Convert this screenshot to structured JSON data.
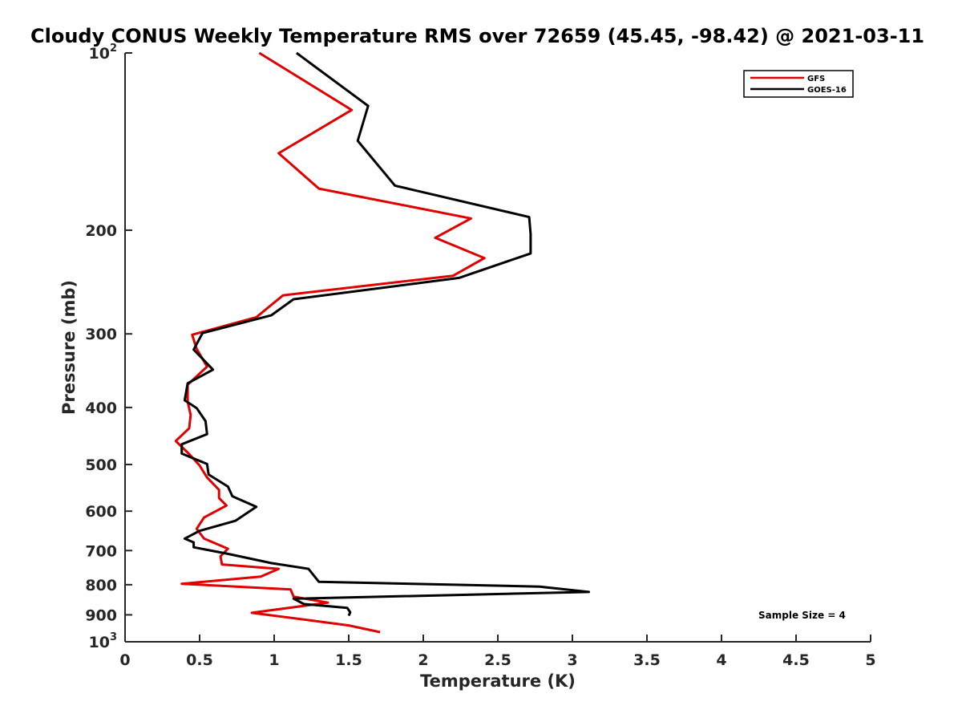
{
  "chart_data": {
    "type": "line",
    "title": "Cloudy CONUS Weekly Temperature RMS over 72659 (45.45, -98.42) @ 2021-03-11",
    "xlabel": "Temperature (K)",
    "ylabel": "Pressure (mb)",
    "xlim": [
      0,
      5
    ],
    "ylim": [
      100,
      1000
    ],
    "y_scale": "log",
    "y_reversed": true,
    "grid": false,
    "legend_position": "top-right",
    "x_ticks": [
      {
        "value": 0,
        "label": "0"
      },
      {
        "value": 0.5,
        "label": "0.5"
      },
      {
        "value": 1,
        "label": "1"
      },
      {
        "value": 1.5,
        "label": "1.5"
      },
      {
        "value": 2,
        "label": "2"
      },
      {
        "value": 2.5,
        "label": "2.5"
      },
      {
        "value": 3,
        "label": "3"
      },
      {
        "value": 3.5,
        "label": "3.5"
      },
      {
        "value": 4,
        "label": "4"
      },
      {
        "value": 4.5,
        "label": "4.5"
      },
      {
        "value": 5,
        "label": "5"
      }
    ],
    "y_ticks": [
      {
        "value": 100,
        "base": "10",
        "exp": "2"
      },
      {
        "value": 200,
        "base": "200",
        "exp": ""
      },
      {
        "value": 300,
        "base": "300",
        "exp": ""
      },
      {
        "value": 400,
        "base": "400",
        "exp": ""
      },
      {
        "value": 500,
        "base": "500",
        "exp": ""
      },
      {
        "value": 600,
        "base": "600",
        "exp": ""
      },
      {
        "value": 700,
        "base": "700",
        "exp": ""
      },
      {
        "value": 800,
        "base": "800",
        "exp": ""
      },
      {
        "value": 900,
        "base": "900",
        "exp": ""
      },
      {
        "value": 1000,
        "base": "10",
        "exp": "3"
      }
    ],
    "series": [
      {
        "name": "GFS",
        "color": "#e00000",
        "points": [
          [
            0.9,
            100
          ],
          [
            1.52,
            125
          ],
          [
            1.03,
            148
          ],
          [
            1.3,
            170
          ],
          [
            2.32,
            191
          ],
          [
            2.08,
            206
          ],
          [
            2.41,
            223
          ],
          [
            2.2,
            239
          ],
          [
            1.06,
            258
          ],
          [
            0.88,
            281
          ],
          [
            0.45,
            301
          ],
          [
            0.48,
            318
          ],
          [
            0.55,
            341
          ],
          [
            0.42,
            366
          ],
          [
            0.42,
            391
          ],
          [
            0.44,
            412
          ],
          [
            0.43,
            434
          ],
          [
            0.34,
            456
          ],
          [
            0.43,
            480
          ],
          [
            0.5,
            502
          ],
          [
            0.55,
            526
          ],
          [
            0.63,
            552
          ],
          [
            0.63,
            570
          ],
          [
            0.68,
            587
          ],
          [
            0.53,
            615
          ],
          [
            0.48,
            643
          ],
          [
            0.53,
            668
          ],
          [
            0.69,
            695
          ],
          [
            0.64,
            716
          ],
          [
            0.65,
            739
          ],
          [
            1.03,
            752
          ],
          [
            0.91,
            775
          ],
          [
            0.38,
            797
          ],
          [
            1.11,
            815
          ],
          [
            1.13,
            838
          ],
          [
            1.36,
            858
          ],
          [
            0.85,
            893
          ],
          [
            1.22,
            918
          ],
          [
            1.5,
            938
          ],
          [
            1.71,
            963
          ]
        ]
      },
      {
        "name": "GOES-16",
        "color": "#000000",
        "points": [
          [
            1.15,
            100
          ],
          [
            1.63,
            123
          ],
          [
            1.56,
            141
          ],
          [
            1.81,
            168
          ],
          [
            2.71,
            190
          ],
          [
            2.72,
            203
          ],
          [
            2.72,
            219
          ],
          [
            2.24,
            241
          ],
          [
            1.13,
            262
          ],
          [
            0.98,
            279
          ],
          [
            0.52,
            299
          ],
          [
            0.46,
            319
          ],
          [
            0.59,
            345
          ],
          [
            0.42,
            364
          ],
          [
            0.4,
            389
          ],
          [
            0.48,
            401
          ],
          [
            0.54,
            422
          ],
          [
            0.55,
            444
          ],
          [
            0.38,
            462
          ],
          [
            0.38,
            479
          ],
          [
            0.55,
            499
          ],
          [
            0.56,
            520
          ],
          [
            0.69,
            545
          ],
          [
            0.72,
            566
          ],
          [
            0.88,
            590
          ],
          [
            0.74,
            623
          ],
          [
            0.5,
            648
          ],
          [
            0.4,
            668
          ],
          [
            0.46,
            678
          ],
          [
            0.46,
            691
          ],
          [
            0.69,
            709
          ],
          [
            0.98,
            735
          ],
          [
            1.23,
            752
          ],
          [
            1.3,
            791
          ],
          [
            2.78,
            806
          ],
          [
            3.11,
            823
          ],
          [
            1.13,
            845
          ],
          [
            1.2,
            863
          ],
          [
            1.49,
            876
          ],
          [
            1.51,
            891
          ],
          [
            1.5,
            903
          ]
        ]
      }
    ],
    "annotations": [
      {
        "text": "Sample Size = 4"
      }
    ]
  }
}
